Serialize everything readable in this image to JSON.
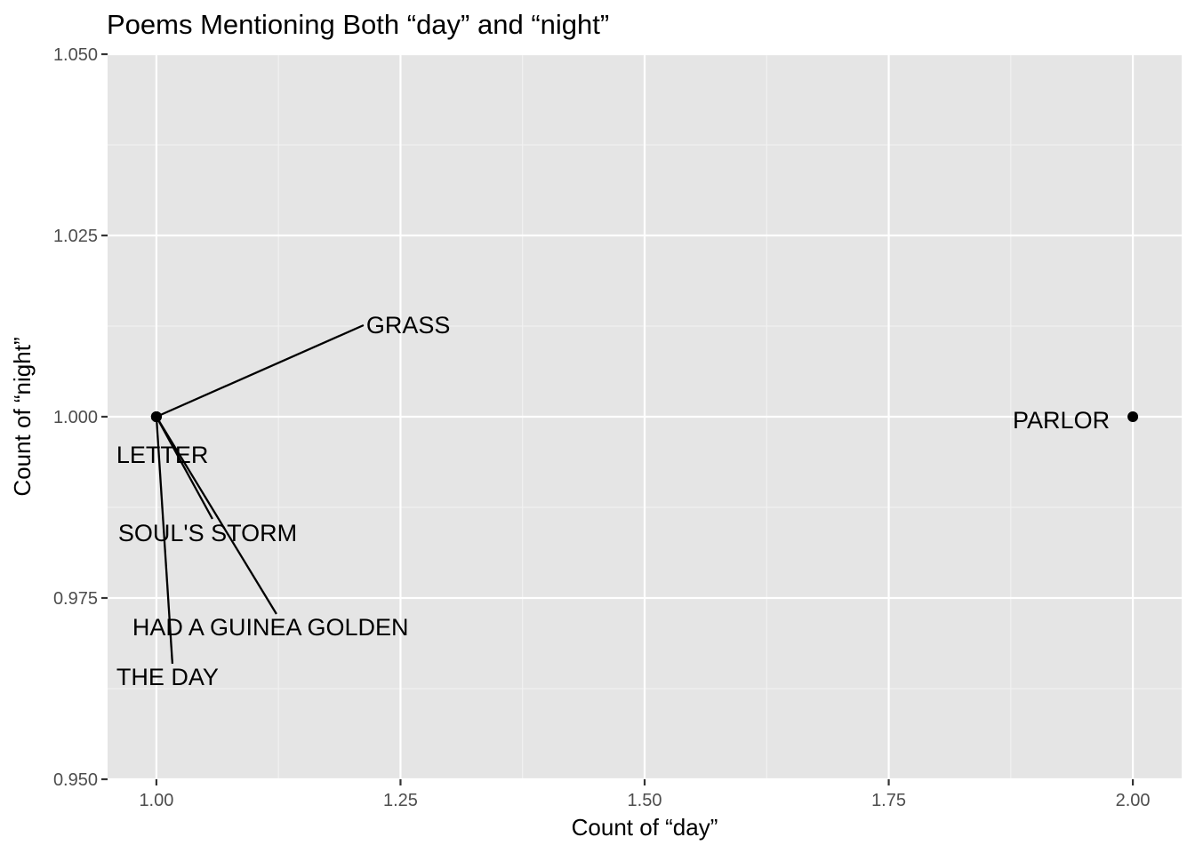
{
  "chart_data": {
    "type": "scatter",
    "title": "Poems Mentioning Both “day” and “night”",
    "xlabel": "Count of “day”",
    "ylabel": "Count of “night”",
    "xlim": [
      0.95,
      2.05
    ],
    "ylim": [
      0.95,
      1.05
    ],
    "x_ticks": [
      1.0,
      1.25,
      1.5,
      1.75,
      2.0
    ],
    "x_tick_labels": [
      "1.00",
      "1.25",
      "1.50",
      "1.75",
      "2.00"
    ],
    "y_ticks": [
      0.95,
      0.975,
      1.0,
      1.025,
      1.05
    ],
    "y_tick_labels": [
      "0.950",
      "0.975",
      "1.000",
      "1.025",
      "1.050"
    ],
    "grid": true,
    "background": "#e5e5e5",
    "point_color": "#000000",
    "points": [
      {
        "label": "GRASS",
        "x": 1,
        "y": 1
      },
      {
        "label": "LETTER",
        "x": 1,
        "y": 1
      },
      {
        "label": "SOUL'S STORM",
        "x": 1,
        "y": 1
      },
      {
        "label": "HAD A GUINEA GOLDEN",
        "x": 1,
        "y": 1
      },
      {
        "label": "THE DAY",
        "x": 1,
        "y": 1
      },
      {
        "label": "PARLOR",
        "x": 2,
        "y": 1
      }
    ]
  }
}
